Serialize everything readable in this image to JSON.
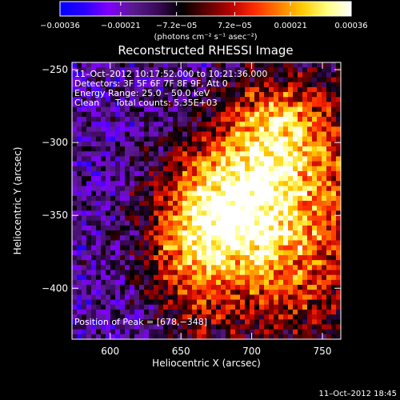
{
  "chart_data": {
    "type": "heatmap",
    "title": "Reconstructed RHESSI Image",
    "xlabel": "Heliocentric X (arcsec)",
    "ylabel": "Heliocentric Y (arcsec)",
    "xlim": [
      573,
      763
    ],
    "ylim": [
      -435,
      -245
    ],
    "x_ticks": [
      600,
      650,
      700,
      750
    ],
    "y_ticks": [
      -250,
      -300,
      -350,
      -400
    ],
    "x_tick_labels": [
      "600",
      "650",
      "700",
      "750"
    ],
    "y_tick_labels": [
      "−250",
      "−300",
      "−350",
      "−400"
    ],
    "colorbar": {
      "range": [
        -0.00036,
        0.00036
      ],
      "ticks": [
        -0.00036,
        -0.00021,
        -7.2e-05,
        7.2e-05,
        0.00021,
        0.00036
      ],
      "tick_labels": [
        "−0.00036",
        "−0.00021",
        "−7.2e−05",
        "7.2e−05",
        "0.00021",
        "0.00036"
      ],
      "unit_text": "(photons cm⁻² s⁻¹ asec⁻²)",
      "colors": [
        "#0000ff",
        "#2a00ff",
        "#8000ff",
        "#5a1a8f",
        "#3a0a5a",
        "#000000",
        "#5a0000",
        "#b30000",
        "#ff2a00",
        "#ff7a00",
        "#ffcc00",
        "#ffff80",
        "#ffffff"
      ]
    },
    "annotations": {
      "time_range": "11–Oct–2012 10:17:52.000 to 10:21:36.000",
      "detectors": "Detectors: 3F 5F 6F 7F 8F 9F, Att 0",
      "energy_range": "Energy Range: 25.0 – 50.0 keV",
      "method": "Clean",
      "total_counts": "Total counts: 5.35E+03",
      "peak": "Position of Peak = [678,−348]"
    },
    "peak": {
      "x": 678,
      "y": -348
    },
    "grid": false,
    "footer_date": "11–Oct–2012 18:45"
  }
}
